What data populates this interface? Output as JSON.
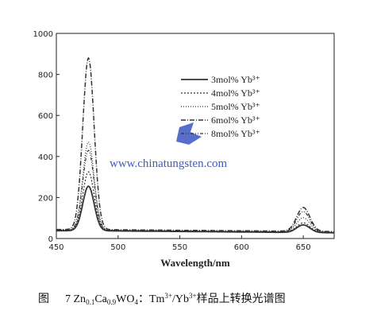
{
  "chart_data": {
    "type": "line",
    "title": "",
    "xlabel": "Wavelength/nm",
    "ylabel": "",
    "xlim": [
      450,
      675
    ],
    "ylim": [
      0,
      1000
    ],
    "xticks": [
      450,
      500,
      550,
      600,
      650
    ],
    "yticks": [
      0,
      200,
      400,
      600,
      800,
      1000
    ],
    "grid": false,
    "legend_position": "top-right",
    "series": [
      {
        "name": "3mol% Yb³⁺",
        "blue_peak": 255,
        "red_peak": 75,
        "baseline": 38
      },
      {
        "name": "4mol% Yb³⁺",
        "blue_peak": 325,
        "red_peak": 85,
        "baseline": 40
      },
      {
        "name": "5mol% Yb³⁺",
        "blue_peak": 470,
        "red_peak": 110,
        "baseline": 42
      },
      {
        "name": "6mol% Yb³⁺",
        "blue_peak": 880,
        "red_peak": 160,
        "baseline": 44
      },
      {
        "name": "8mol% Yb³⁺",
        "blue_peak": 430,
        "red_peak": 140,
        "baseline": 40
      }
    ],
    "peaks_nm": [
      476,
      650
    ]
  },
  "watermark": {
    "url": "www.chinatungsten.com"
  },
  "caption": {
    "fig": "图",
    "num": "7",
    "formula_a": "Zn",
    "sub_a": "0.1",
    "formula_b": "Ca",
    "sub_b": "0.9",
    "formula_c": "WO",
    "sub_c": "4",
    "colon": "：",
    "ion1": "Tm",
    "sup1": "3+",
    "slash": "/",
    "ion2": "Yb",
    "sup2": "3+",
    "tail": "样品上转换光谱图"
  }
}
